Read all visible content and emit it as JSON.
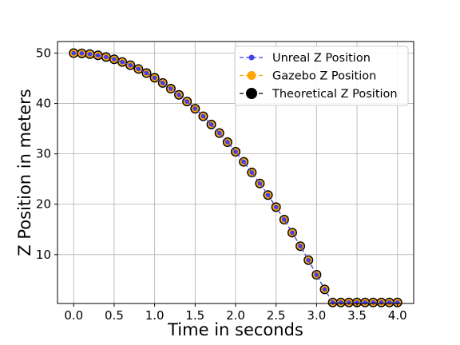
{
  "chart_data": {
    "type": "line",
    "title": "",
    "xlabel": "Time in seconds",
    "ylabel": "Z Position in meters",
    "xlim": [
      -0.2,
      4.2
    ],
    "ylim": [
      0.3,
      52.3
    ],
    "xticks": [
      "0.0",
      "0.5",
      "1.0",
      "1.5",
      "2.0",
      "2.5",
      "3.0",
      "3.5",
      "4.0"
    ],
    "xtick_values": [
      0,
      0.5,
      1.0,
      1.5,
      2.0,
      2.5,
      3.0,
      3.5,
      4.0
    ],
    "yticks": [
      "10",
      "20",
      "30",
      "40",
      "50"
    ],
    "ytick_values": [
      10,
      20,
      30,
      40,
      50
    ],
    "grid": true,
    "legend_position": "top-right",
    "x": [
      0.0,
      0.1,
      0.2,
      0.3,
      0.4,
      0.5,
      0.6,
      0.7,
      0.8,
      0.9,
      1.0,
      1.1,
      1.2,
      1.3,
      1.4,
      1.5,
      1.6,
      1.7,
      1.8,
      1.9,
      2.0,
      2.1,
      2.2,
      2.3,
      2.4,
      2.5,
      2.6,
      2.7,
      2.8,
      2.9,
      3.0,
      3.1,
      3.2,
      3.3,
      3.4,
      3.5,
      3.6,
      3.7,
      3.8,
      3.9,
      4.0
    ],
    "series": [
      {
        "name": "Unreal Z Position",
        "color": "#4040ee",
        "values": [
          50.0,
          49.95,
          49.8,
          49.56,
          49.22,
          48.78,
          48.24,
          47.6,
          46.86,
          46.03,
          45.1,
          44.07,
          42.94,
          41.71,
          40.39,
          38.97,
          37.46,
          35.84,
          34.13,
          32.32,
          30.42,
          28.42,
          26.31,
          24.12,
          21.82,
          19.43,
          16.94,
          14.36,
          11.68,
          8.9,
          6.0,
          3.1,
          0.5,
          0.5,
          0.5,
          0.5,
          0.5,
          0.5,
          0.5,
          0.5,
          0.5
        ]
      },
      {
        "name": "Gazebo Z Position",
        "color": "#ffa500",
        "values": [
          50.0,
          49.95,
          49.8,
          49.56,
          49.22,
          48.78,
          48.24,
          47.6,
          46.86,
          46.03,
          45.1,
          44.07,
          42.94,
          41.71,
          40.39,
          38.97,
          37.46,
          35.84,
          34.13,
          32.32,
          30.42,
          28.42,
          26.31,
          24.12,
          21.82,
          19.43,
          16.94,
          14.36,
          11.68,
          8.9,
          6.0,
          3.1,
          0.5,
          0.5,
          0.5,
          0.5,
          0.5,
          0.5,
          0.5,
          0.5,
          0.5
        ]
      },
      {
        "name": "Theoretical Z Position",
        "color": "#000000",
        "values": [
          50.0,
          49.95,
          49.8,
          49.56,
          49.22,
          48.78,
          48.24,
          47.6,
          46.86,
          46.03,
          45.1,
          44.07,
          42.94,
          41.71,
          40.39,
          38.97,
          37.46,
          35.84,
          34.13,
          32.32,
          30.42,
          28.42,
          26.31,
          24.12,
          21.82,
          19.43,
          16.94,
          14.36,
          11.68,
          8.9,
          6.0,
          3.1,
          0.5,
          0.5,
          0.5,
          0.5,
          0.5,
          0.5,
          0.5,
          0.5,
          0.5
        ]
      }
    ]
  }
}
